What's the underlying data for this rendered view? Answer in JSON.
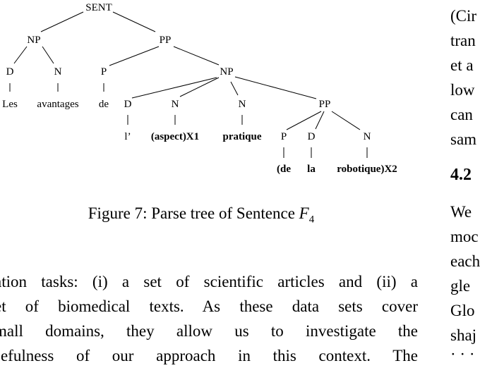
{
  "tree": {
    "nodes": [
      {
        "id": "sent",
        "label": "SENT"
      },
      {
        "id": "np1",
        "label": "NP"
      },
      {
        "id": "pp1",
        "label": "PP"
      },
      {
        "id": "d1",
        "label": "D"
      },
      {
        "id": "n1",
        "label": "N"
      },
      {
        "id": "p1",
        "label": "P"
      },
      {
        "id": "np2",
        "label": "NP"
      },
      {
        "id": "d2",
        "label": "D"
      },
      {
        "id": "n2",
        "label": "N"
      },
      {
        "id": "n3",
        "label": "N"
      },
      {
        "id": "pp2",
        "label": "PP"
      },
      {
        "id": "p2",
        "label": "P"
      },
      {
        "id": "d3",
        "label": "D"
      },
      {
        "id": "n4",
        "label": "N"
      }
    ],
    "words": [
      {
        "id": "w_les",
        "label": "Les",
        "bold": false
      },
      {
        "id": "w_avantages",
        "label": "avantages",
        "bold": false
      },
      {
        "id": "w_de",
        "label": "de",
        "bold": false
      },
      {
        "id": "w_l",
        "label": "l’",
        "bold": false
      },
      {
        "id": "w_aspect",
        "label": "(aspect)X1",
        "bold": true
      },
      {
        "id": "w_pratique",
        "label": "pratique",
        "bold": true
      },
      {
        "id": "w_de2",
        "label": "(de",
        "bold": true
      },
      {
        "id": "w_la",
        "label": "la",
        "bold": true
      },
      {
        "id": "w_robotique",
        "label": "robotique)X2",
        "bold": true
      }
    ]
  },
  "caption": {
    "prefix": "Figure 7: Parse tree of Sentence ",
    "var": "F",
    "sub": "4"
  },
  "left_text": {
    "lines": [
      "ation tasks: (i) a set of scientific articles and (ii) a",
      "et of biomedical texts.  As these data sets cover",
      "mall domains, they allow us to investigate the",
      "sefulness of our approach in this context.  The"
    ]
  },
  "right_text": {
    "lines_top": [
      "(Cir",
      "tran",
      "et a",
      "low",
      "can",
      "sam"
    ],
    "heading": "4.2",
    "lines_bottom": [
      "We",
      "moc",
      "each",
      "gle",
      "Glo",
      "shaj",
      "· · ·"
    ]
  }
}
